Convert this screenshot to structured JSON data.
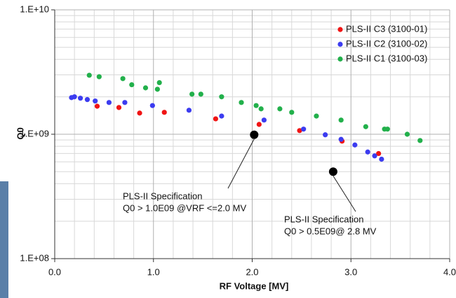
{
  "chart_data": {
    "type": "scatter",
    "xlabel": "RF Voltage [MV]",
    "ylabel": "Q0",
    "xlim": [
      0,
      4
    ],
    "xticks": [
      {
        "value": 0,
        "label": "0.0"
      },
      {
        "value": 1,
        "label": "1.0"
      },
      {
        "value": 2,
        "label": "2.0"
      },
      {
        "value": 3,
        "label": "3.0"
      },
      {
        "value": 4,
        "label": "4.0"
      }
    ],
    "ylim": [
      100000000,
      10000000000
    ],
    "yticks": [
      {
        "value": 100000000,
        "label": "1.E+08"
      },
      {
        "value": 1000000000,
        "label": "1.E+09"
      },
      {
        "value": 10000000000,
        "label": "1.E+10"
      }
    ],
    "log_y": true,
    "grid": true,
    "legend": "upper right",
    "series": [
      {
        "name": "PLS-II C3 (3100-01)",
        "color": "#f01414",
        "x": [
          0.43,
          0.65,
          0.86,
          1.11,
          1.63,
          2.07,
          2.48,
          2.91,
          3.28
        ],
        "values": [
          1680000000,
          1640000000,
          1480000000,
          1500000000,
          1330000000,
          1200000000,
          1070000000,
          880000000,
          700000000
        ]
      },
      {
        "name": "PLS-II C2 (3100-02)",
        "color": "#3c3cf0",
        "x": [
          0.17,
          0.2,
          0.26,
          0.33,
          0.41,
          0.55,
          0.71,
          0.99,
          1.36,
          1.69,
          2.12,
          2.52,
          2.74,
          2.9,
          3.04,
          3.17,
          3.24,
          3.31
        ],
        "values": [
          1970000000,
          2000000000,
          1950000000,
          1900000000,
          1850000000,
          1800000000,
          1800000000,
          1700000000,
          1560000000,
          1400000000,
          1300000000,
          1100000000,
          990000000,
          910000000,
          820000000,
          720000000,
          670000000,
          630000000
        ]
      },
      {
        "name": "PLS-II C1 (3100-03)",
        "color": "#22b04b",
        "x": [
          0.35,
          0.45,
          0.69,
          0.78,
          0.92,
          1.04,
          1.06,
          1.39,
          1.48,
          1.69,
          1.89,
          2.04,
          2.09,
          2.28,
          2.4,
          2.65,
          2.9,
          3.15,
          3.34,
          3.37,
          3.57,
          3.7
        ],
        "values": [
          2980000000,
          2900000000,
          2800000000,
          2500000000,
          2360000000,
          2300000000,
          2600000000,
          2100000000,
          2100000000,
          2000000000,
          1800000000,
          1700000000,
          1600000000,
          1600000000,
          1500000000,
          1400000000,
          1300000000,
          1150000000,
          1100000000,
          1100000000,
          1000000000,
          890000000
        ]
      }
    ],
    "annotations": [
      {
        "lines": [
          "PLS-II Specification",
          "Q0 > 1.0E09 @VRF <=2.0 MV"
        ],
        "x": 2.02,
        "y": 990000000
      },
      {
        "lines": [
          "PLS-II Specification",
          "Q0 > 0.5E09@ 2.8 MV"
        ],
        "x": 2.82,
        "y": 500000000
      }
    ]
  }
}
